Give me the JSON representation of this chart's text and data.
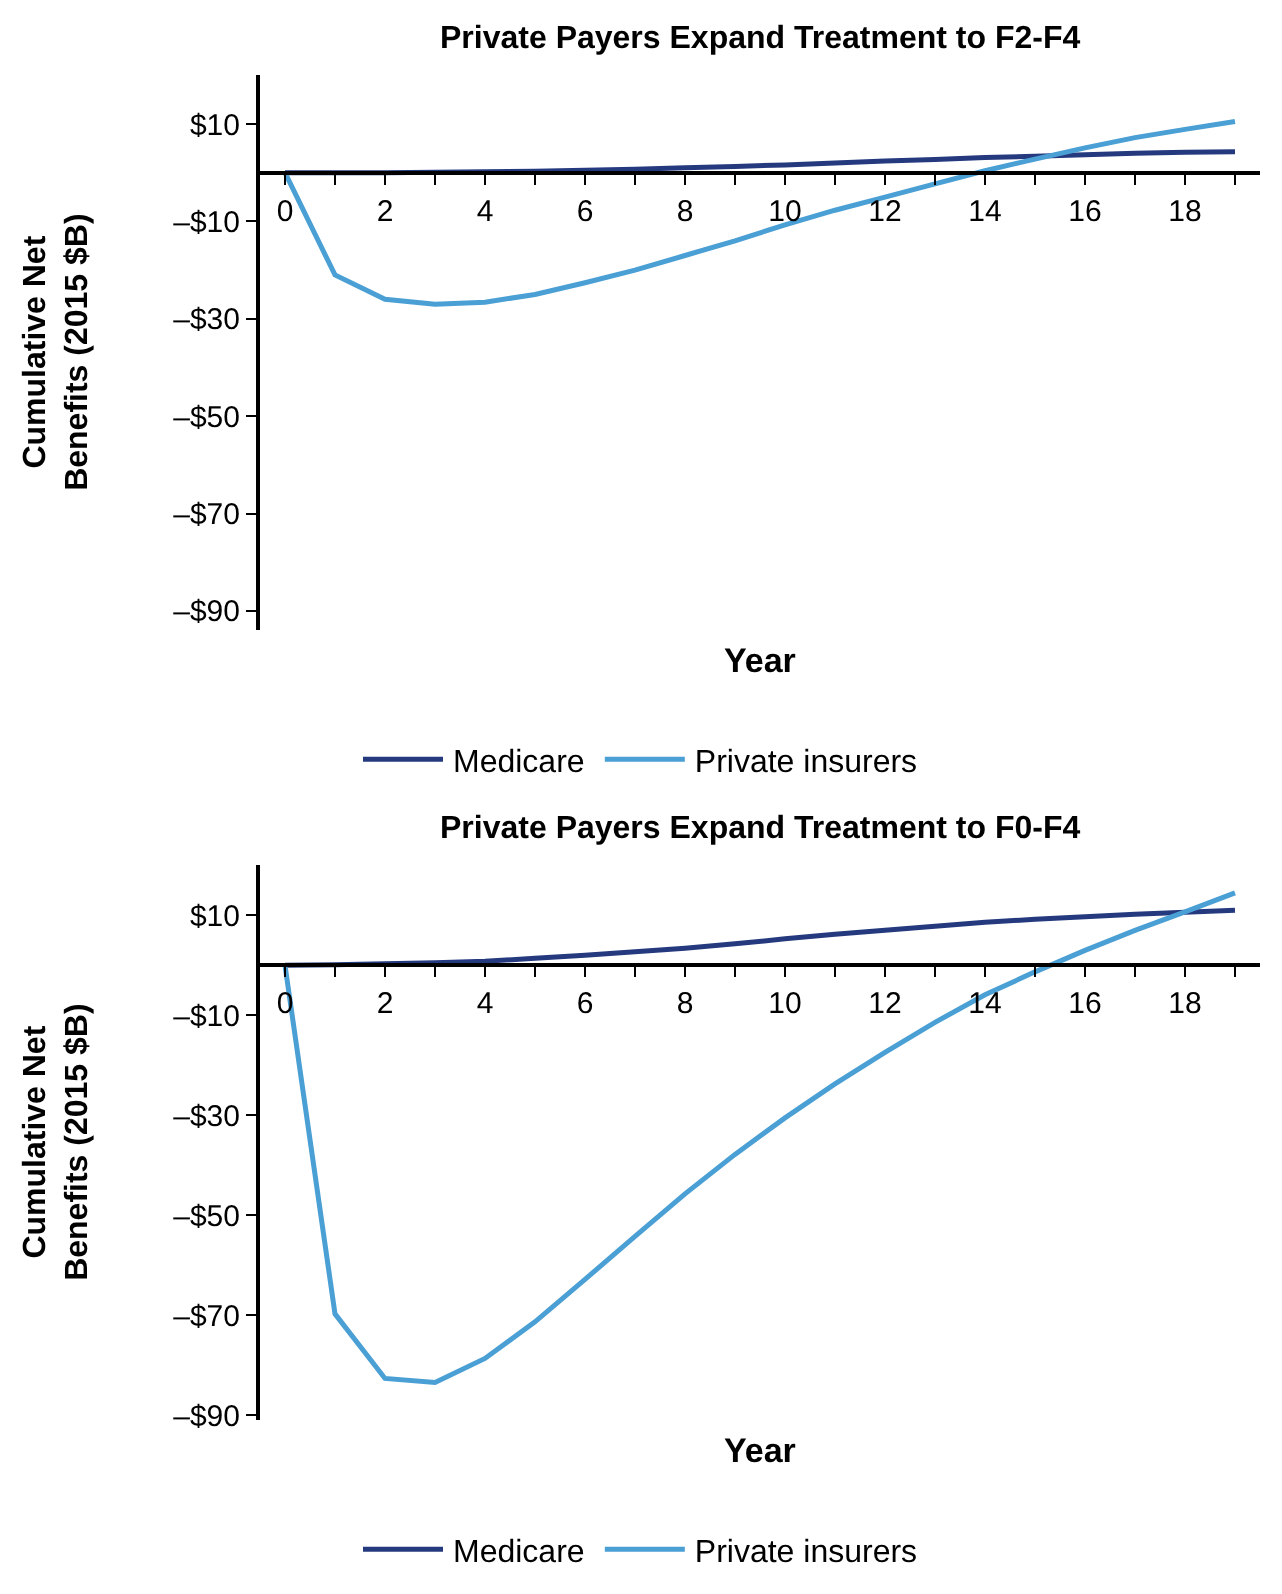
{
  "chart_data": [
    {
      "type": "line",
      "title": "Private Payers Expand Treatment to F2-F4",
      "xlabel": "Year",
      "ylabel": "Cumulative Net\nBenefits (2015 $B)",
      "x": [
        0,
        1,
        2,
        3,
        4,
        5,
        6,
        7,
        8,
        9,
        10,
        11,
        12,
        13,
        14,
        15,
        16,
        17,
        18,
        19
      ],
      "series": [
        {
          "name": "Medicare",
          "color": "#253a7e",
          "values": [
            0,
            0,
            0,
            0.1,
            0.2,
            0.3,
            0.5,
            0.7,
            1,
            1.3,
            1.6,
            2,
            2.4,
            2.7,
            3.1,
            3.4,
            3.7,
            4,
            4.2,
            4.3
          ]
        },
        {
          "name": "Private insurers",
          "color": "#4a9fd4",
          "values": [
            0,
            -21,
            -26,
            -27,
            -26.6,
            -25,
            -22.6,
            -20,
            -17,
            -14,
            -10.7,
            -7.7,
            -5,
            -2.3,
            0.4,
            2.8,
            5.1,
            7.2,
            8.9,
            10.5
          ]
        }
      ],
      "xlim": [
        -0.5,
        19.5
      ],
      "xticks": [
        0,
        {
          "value": 1,
          "label": null
        },
        2,
        {
          "value": 3,
          "label": null
        },
        4,
        {
          "value": 5,
          "label": null
        },
        6,
        {
          "value": 7,
          "label": null
        },
        8,
        {
          "value": 9,
          "label": null
        },
        10,
        {
          "value": 11,
          "label": null
        },
        12,
        {
          "value": 13,
          "label": null
        },
        14,
        {
          "value": 15,
          "label": null
        },
        16,
        {
          "value": 17,
          "label": null
        },
        18,
        {
          "value": 19,
          "label": null
        }
      ],
      "ylim": [
        -94,
        20
      ],
      "yticks": [
        {
          "value": 10,
          "label": "$10"
        },
        {
          "value": -10,
          "label": "–$10"
        },
        {
          "value": -30,
          "label": "–$30"
        },
        {
          "value": -50,
          "label": "–$50"
        },
        {
          "value": -70,
          "label": "–$70"
        },
        {
          "value": -90,
          "label": "–$90"
        }
      ],
      "legend": "bottom",
      "marker": "none",
      "line_style": "solid"
    },
    {
      "type": "line",
      "title": "Private Payers Expand Treatment to F0-F4",
      "xlabel": "Year",
      "ylabel": "Cumulative Net\nBenefits (2015 $B)",
      "x": [
        0,
        1,
        2,
        3,
        4,
        5,
        6,
        7,
        8,
        9,
        10,
        11,
        12,
        13,
        14,
        15,
        16,
        17,
        18,
        19
      ],
      "series": [
        {
          "name": "Medicare",
          "color": "#253a7e",
          "values": [
            0,
            0.1,
            0.3,
            0.5,
            0.8,
            1.4,
            2,
            2.7,
            3.4,
            4.3,
            5.3,
            6.2,
            7,
            7.8,
            8.6,
            9.2,
            9.7,
            10.2,
            10.6,
            11
          ]
        },
        {
          "name": "Private insurers",
          "color": "#4a9fd4",
          "values": [
            0,
            -69.7,
            -82.6,
            -83.4,
            -78.6,
            -71.3,
            -62.8,
            -54.2,
            -45.7,
            -37.8,
            -30.5,
            -23.7,
            -17.4,
            -11.4,
            -5.9,
            -1.3,
            3,
            7,
            10.7,
            14.5
          ]
        }
      ],
      "xlim": [
        -0.5,
        19.5
      ],
      "xticks": [
        0,
        {
          "value": 1,
          "label": null
        },
        2,
        {
          "value": 3,
          "label": null
        },
        4,
        {
          "value": 5,
          "label": null
        },
        6,
        {
          "value": 7,
          "label": null
        },
        8,
        {
          "value": 9,
          "label": null
        },
        10,
        {
          "value": 11,
          "label": null
        },
        12,
        {
          "value": 13,
          "label": null
        },
        14,
        {
          "value": 15,
          "label": null
        },
        16,
        {
          "value": 17,
          "label": null
        },
        18,
        {
          "value": 19,
          "label": null
        }
      ],
      "ylim": [
        -91,
        20
      ],
      "yticks": [
        {
          "value": 10,
          "label": "$10"
        },
        {
          "value": -10,
          "label": "–$10"
        },
        {
          "value": -30,
          "label": "–$30"
        },
        {
          "value": -50,
          "label": "–$50"
        },
        {
          "value": -70,
          "label": "–$70"
        },
        {
          "value": -90,
          "label": "–$90"
        }
      ],
      "legend": "bottom",
      "marker": "none",
      "line_style": "solid"
    }
  ]
}
